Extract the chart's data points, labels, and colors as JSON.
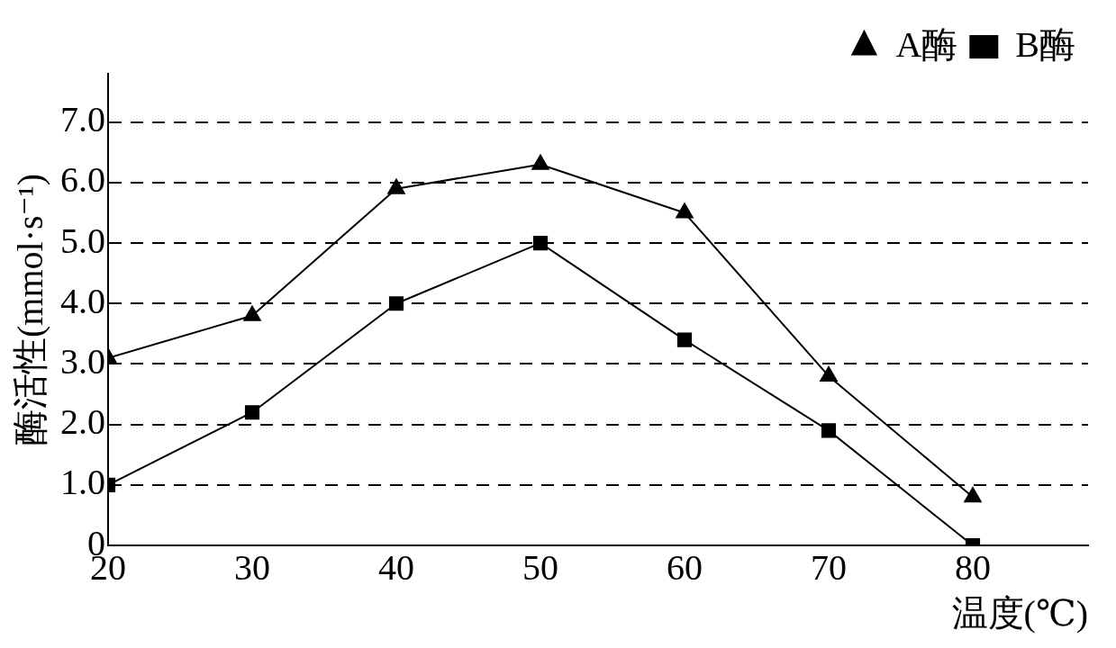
{
  "chart_data": {
    "type": "line",
    "xlabel": "温度(℃)",
    "ylabel": "酶活性(mmol·s⁻¹)",
    "x": [
      20,
      30,
      40,
      50,
      60,
      70,
      80
    ],
    "series": [
      {
        "name": "A酶",
        "color": "#000000",
        "marker": "triangle",
        "values": [
          3.1,
          3.8,
          5.9,
          6.3,
          5.5,
          2.8,
          0.8
        ]
      },
      {
        "name": "B酶",
        "color": "#000000",
        "marker": "square",
        "values": [
          1.0,
          2.2,
          4.0,
          5.0,
          3.4,
          1.9,
          0
        ]
      }
    ],
    "xlim": [
      20,
      88
    ],
    "xticks": [
      20,
      30,
      40,
      50,
      60,
      70,
      80
    ],
    "ylim": [
      0,
      7.8
    ],
    "yticks": [
      0,
      {
        "value": 1,
        "label": "1.0"
      },
      {
        "value": 2,
        "label": "2.0"
      },
      {
        "value": 3,
        "label": "3.0"
      },
      {
        "value": 4,
        "label": "4.0"
      },
      {
        "value": 5,
        "label": "5.0"
      },
      {
        "value": 6,
        "label": "6.0"
      },
      {
        "value": 7,
        "label": "7.0"
      }
    ],
    "grid": "y",
    "legend": "top right",
    "line_style": "solid"
  }
}
